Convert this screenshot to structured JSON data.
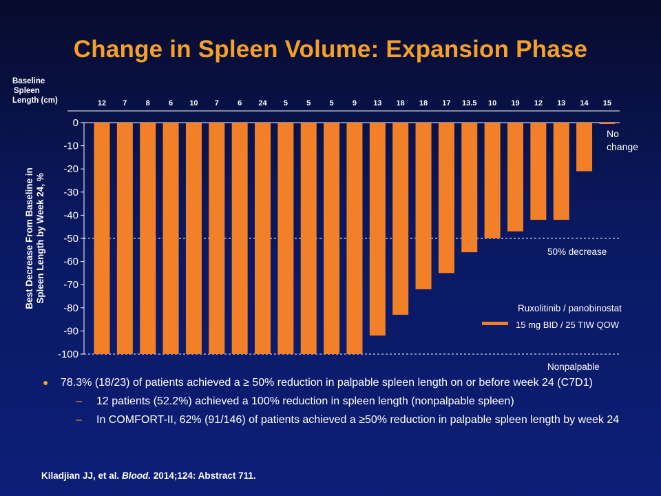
{
  "title": "Change in Spleen Volume: Expansion Phase",
  "baseline_label": [
    "Baseline",
    "Spleen",
    "Length (cm)"
  ],
  "colors": {
    "bar": "#f28028",
    "title": "#f5a028",
    "background": "#0b1a6a"
  },
  "chart_data": {
    "type": "bar",
    "ylabel_lines": [
      "Best Decrease From Baseline in",
      "Spleen Length by Week 24, %"
    ],
    "ylim": [
      -100,
      0
    ],
    "yticks": [
      0,
      -10,
      -20,
      -30,
      -40,
      -50,
      -60,
      -70,
      -80,
      -90,
      -100
    ],
    "baseline_spleen_length_cm": [
      "12",
      "7",
      "8",
      "6",
      "10",
      "7",
      "6",
      "24",
      "5",
      "5",
      "5",
      "9",
      "13",
      "18",
      "18",
      "17",
      "13.5",
      "10",
      "19",
      "12",
      "13",
      "14",
      "15"
    ],
    "values": [
      -100,
      -100,
      -100,
      -100,
      -100,
      -100,
      -100,
      -100,
      -100,
      -100,
      -100,
      -100,
      -92,
      -83,
      -72,
      -65,
      -56,
      -50,
      -47,
      -42,
      -42,
      -21,
      0
    ],
    "reference_lines": [
      {
        "value": -50,
        "label": "50% decrease"
      },
      {
        "value": -100,
        "label": "Nonpalpable"
      }
    ],
    "annotation_no_change": [
      "No",
      "change"
    ],
    "legend": {
      "header": "Ruxolitinib  / panobinostat",
      "entry": "15 mg BID / 25 TIW QOW",
      "position": "right"
    }
  },
  "bullets": {
    "main": "78.3% (18/23) of patients achieved a ≥ 50% reduction in palpable spleen length on or before week 24 (C7D1)",
    "sub1": "12 patients (52.2%) achieved a 100% reduction in spleen length (nonpalpable spleen)",
    "sub2": "In COMFORT-II, 62% (91/146) of patients achieved a ≥50% reduction in palpable spleen length by week 24"
  },
  "citation": {
    "pre": "Kiladjian JJ, et al. ",
    "journal": "Blood.",
    "post": " 2014;124: Abstract 711."
  }
}
